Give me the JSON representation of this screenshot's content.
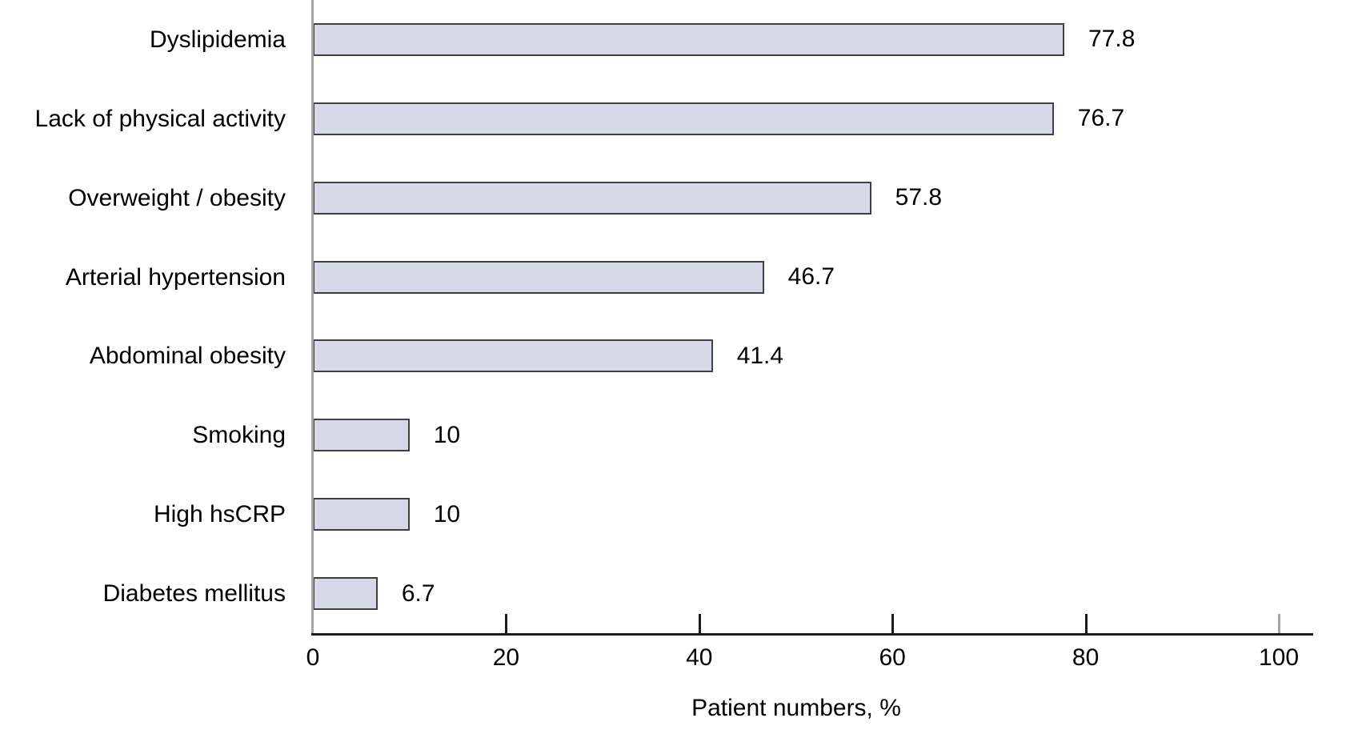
{
  "chart_data": {
    "type": "bar",
    "orientation": "horizontal",
    "title": "",
    "xlabel": "Patient numbers, %",
    "ylabel": "",
    "categories": [
      "Dyslipidemia",
      "Lack of physical activity",
      "Overweight / obesity",
      "Arterial hypertension",
      "Abdominal obesity",
      "Smoking",
      "High hsCRP",
      "Diabetes mellitus"
    ],
    "values": [
      77.8,
      76.7,
      57.8,
      46.7,
      41.4,
      10,
      10,
      6.7
    ],
    "value_labels": [
      "77.8",
      "76.7",
      "57.8",
      "46.7",
      "41.4",
      "10",
      "10",
      "6.7"
    ],
    "xlim": [
      0,
      100
    ],
    "x_ticks": [
      0,
      20,
      40,
      60,
      80,
      100
    ],
    "grid": "off",
    "legend": "none",
    "data_labels_position": "right-of-bar-end",
    "colors": {
      "bar_fill": "#d7d9e8",
      "bar_border": "#404040",
      "x_axis": "#1a1a1a",
      "y_axis": "#a6a6a6",
      "tick": "#1a1a1a",
      "tick_at_100": "#a6a6a6",
      "text": "#000000",
      "background": "#ffffff"
    }
  }
}
